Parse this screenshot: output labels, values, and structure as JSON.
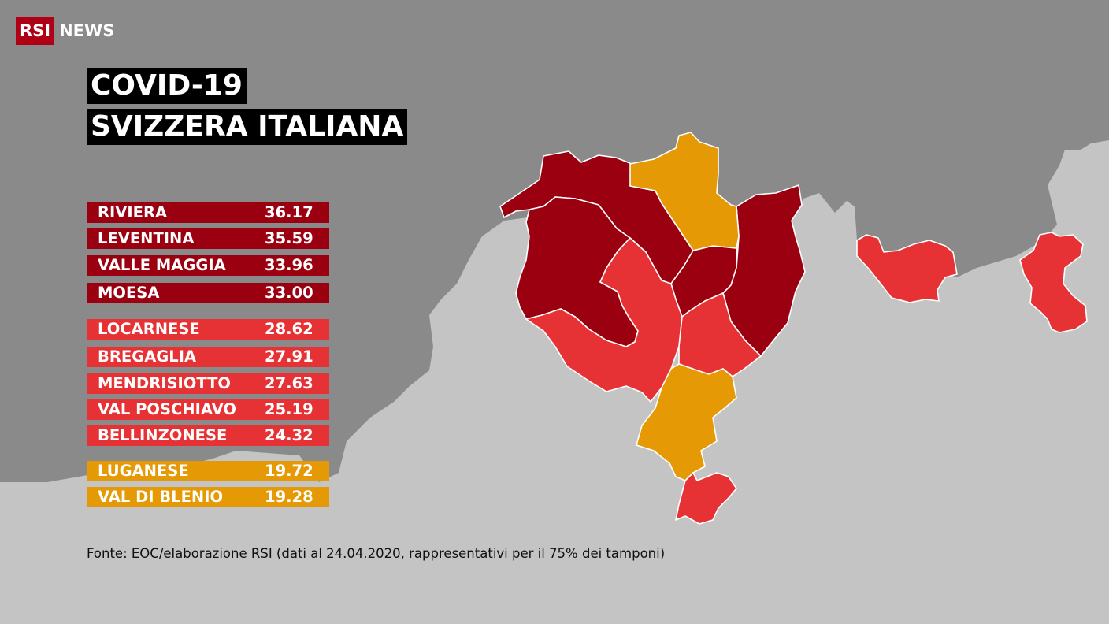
{
  "brand": {
    "logo_text": "RSI",
    "logo_suffix": "NEWS",
    "colors": {
      "logo_red": "#af0016"
    }
  },
  "title": {
    "line1": "COVID-19",
    "line2": "SVIZZERA ITALIANA"
  },
  "legend_colors": {
    "high": "#9b0010",
    "medium": "#e63234",
    "low": "#e59a05"
  },
  "background_colors": {
    "foreign_land": "#c4c4c4",
    "swiss_land": "#8a8a8a"
  },
  "rows": [
    {
      "name": "RIVIERA",
      "value": "36.17",
      "level": "high"
    },
    {
      "name": "LEVENTINA",
      "value": "35.59",
      "level": "high"
    },
    {
      "name": "VALLE MAGGIA",
      "value": "33.96",
      "level": "high"
    },
    {
      "name": "MOESA",
      "value": "33.00",
      "level": "high"
    },
    {
      "name": "LOCARNESE",
      "value": "28.62",
      "level": "medium"
    },
    {
      "name": "BREGAGLIA",
      "value": "27.91",
      "level": "medium"
    },
    {
      "name": "MENDRISIOTTO",
      "value": "27.63",
      "level": "medium"
    },
    {
      "name": "VAL POSCHIAVO",
      "value": "25.19",
      "level": "medium"
    },
    {
      "name": "BELLINZONESE",
      "value": "24.32",
      "level": "medium"
    },
    {
      "name": "LUGANESE",
      "value": "19.72",
      "level": "low"
    },
    {
      "name": "VAL DI BLENIO",
      "value": "19.28",
      "level": "low"
    }
  ],
  "map_regions": [
    {
      "name": "LEVENTINA",
      "level": "high"
    },
    {
      "name": "VALLE MAGGIA",
      "level": "high"
    },
    {
      "name": "RIVIERA",
      "level": "high"
    },
    {
      "name": "MOESA",
      "level": "high"
    },
    {
      "name": "VAL DI BLENIO",
      "level": "low"
    },
    {
      "name": "LOCARNESE",
      "level": "medium"
    },
    {
      "name": "BELLINZONESE",
      "level": "medium"
    },
    {
      "name": "LUGANESE",
      "level": "low"
    },
    {
      "name": "MENDRISIOTTO",
      "level": "medium"
    },
    {
      "name": "BREGAGLIA",
      "level": "medium"
    },
    {
      "name": "VAL POSCHIAVO",
      "level": "medium"
    }
  ],
  "source": "Fonte: EOC/elaborazione RSI (dati al 24.04.2020, rappresentativi per il 75% dei tamponi)"
}
